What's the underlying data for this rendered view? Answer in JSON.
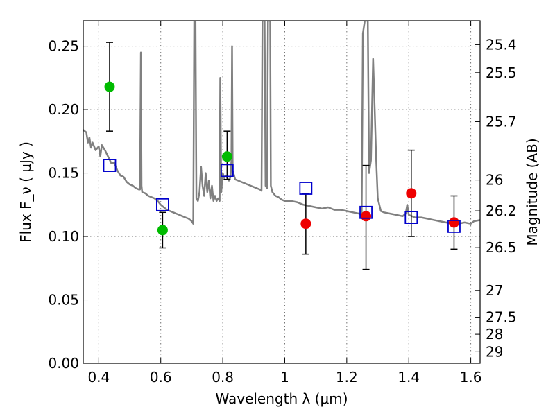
{
  "chart_data": {
    "type": "scatter",
    "xlabel": "Wavelength  λ (μm)",
    "ylabel": "Flux  F_ν  ( μJy )",
    "ylabel_right": "Magnitude (AB)",
    "xlim": [
      0.35,
      1.63
    ],
    "ylim": [
      0.0,
      0.27
    ],
    "grid": true,
    "x_ticks": [
      0.4,
      0.6,
      0.8,
      1.0,
      1.2,
      1.4,
      1.6
    ],
    "x_tick_labels": [
      "0.4",
      "0.6",
      "0.8",
      "1",
      "1.2",
      "1.4",
      "1.6"
    ],
    "y_ticks": [
      0.0,
      0.05,
      0.1,
      0.15,
      0.2,
      0.25
    ],
    "y_tick_labels": [
      "0.00",
      "0.05",
      "0.10",
      "0.15",
      "0.20",
      "0.25"
    ],
    "right_ticks": [
      {
        "mag": "25.4",
        "flux": 0.2512
      },
      {
        "mag": "25.5",
        "flux": 0.2291
      },
      {
        "mag": "25.7",
        "flux": 0.1905
      },
      {
        "mag": "26",
        "flux": 0.1445
      },
      {
        "mag": "26.2",
        "flux": 0.1202
      },
      {
        "mag": "26.5",
        "flux": 0.0912
      },
      {
        "mag": "27",
        "flux": 0.0575
      },
      {
        "mag": "27.5",
        "flux": 0.0363
      },
      {
        "mag": "28",
        "flux": 0.0229
      },
      {
        "mag": "29",
        "flux": 0.0091
      }
    ],
    "series": [
      {
        "color": "#00bb00",
        "marker": "circle",
        "x": [
          0.435,
          0.606,
          0.814
        ],
        "y": [
          0.218,
          0.105,
          0.163
        ],
        "err_low": [
          0.183,
          0.091,
          0.145
        ],
        "err_high": [
          0.253,
          0.119,
          0.183
        ]
      },
      {
        "color": "#ee0000",
        "marker": "circle",
        "x": [
          1.068,
          1.262,
          1.408,
          1.546
        ],
        "y": [
          0.11,
          0.116,
          0.134,
          0.111
        ],
        "err_low": [
          0.086,
          0.074,
          0.1,
          0.09
        ],
        "err_high": [
          0.134,
          0.156,
          0.168,
          0.132
        ]
      },
      {
        "color": "#0000cc",
        "marker": "open-square",
        "x": [
          0.435,
          0.606,
          0.814,
          1.068,
          1.262,
          1.408,
          1.546
        ],
        "y": [
          0.156,
          0.125,
          0.152,
          0.138,
          0.119,
          0.115,
          0.108
        ]
      }
    ],
    "model_spectrum": {
      "color": "#808080",
      "points": [
        [
          0.35,
          0.184
        ],
        [
          0.36,
          0.182
        ],
        [
          0.365,
          0.174
        ],
        [
          0.37,
          0.178
        ],
        [
          0.375,
          0.17
        ],
        [
          0.38,
          0.174
        ],
        [
          0.39,
          0.168
        ],
        [
          0.4,
          0.171
        ],
        [
          0.405,
          0.163
        ],
        [
          0.41,
          0.172
        ],
        [
          0.42,
          0.168
        ],
        [
          0.43,
          0.163
        ],
        [
          0.44,
          0.158
        ],
        [
          0.45,
          0.158
        ],
        [
          0.46,
          0.152
        ],
        [
          0.47,
          0.148
        ],
        [
          0.48,
          0.147
        ],
        [
          0.49,
          0.143
        ],
        [
          0.5,
          0.141
        ],
        [
          0.51,
          0.14
        ],
        [
          0.52,
          0.138
        ],
        [
          0.53,
          0.137
        ],
        [
          0.533,
          0.137
        ],
        [
          0.536,
          0.245
        ],
        [
          0.538,
          0.14
        ],
        [
          0.54,
          0.135
        ],
        [
          0.55,
          0.134
        ],
        [
          0.56,
          0.132
        ],
        [
          0.57,
          0.131
        ],
        [
          0.58,
          0.13
        ],
        [
          0.59,
          0.128
        ],
        [
          0.6,
          0.125
        ],
        [
          0.61,
          0.123
        ],
        [
          0.62,
          0.121
        ],
        [
          0.63,
          0.12
        ],
        [
          0.64,
          0.119
        ],
        [
          0.65,
          0.118
        ],
        [
          0.66,
          0.117
        ],
        [
          0.67,
          0.116
        ],
        [
          0.68,
          0.115
        ],
        [
          0.69,
          0.114
        ],
        [
          0.7,
          0.112
        ],
        [
          0.705,
          0.11
        ],
        [
          0.708,
          0.27
        ],
        [
          0.712,
          0.27
        ],
        [
          0.715,
          0.13
        ],
        [
          0.72,
          0.128
        ],
        [
          0.725,
          0.135
        ],
        [
          0.73,
          0.155
        ],
        [
          0.735,
          0.14
        ],
        [
          0.74,
          0.132
        ],
        [
          0.745,
          0.15
        ],
        [
          0.75,
          0.135
        ],
        [
          0.755,
          0.144
        ],
        [
          0.76,
          0.13
        ],
        [
          0.765,
          0.14
        ],
        [
          0.77,
          0.128
        ],
        [
          0.775,
          0.132
        ],
        [
          0.78,
          0.128
        ],
        [
          0.785,
          0.13
        ],
        [
          0.79,
          0.128
        ],
        [
          0.792,
          0.225
        ],
        [
          0.795,
          0.135
        ],
        [
          0.8,
          0.15
        ],
        [
          0.805,
          0.146
        ],
        [
          0.81,
          0.148
        ],
        [
          0.82,
          0.144
        ],
        [
          0.825,
          0.147
        ],
        [
          0.828,
          0.16
        ],
        [
          0.83,
          0.25
        ],
        [
          0.832,
          0.152
        ],
        [
          0.84,
          0.145
        ],
        [
          0.85,
          0.144
        ],
        [
          0.86,
          0.143
        ],
        [
          0.87,
          0.142
        ],
        [
          0.88,
          0.141
        ],
        [
          0.89,
          0.14
        ],
        [
          0.9,
          0.139
        ],
        [
          0.91,
          0.138
        ],
        [
          0.92,
          0.137
        ],
        [
          0.925,
          0.136
        ],
        [
          0.928,
          0.27
        ],
        [
          0.935,
          0.27
        ],
        [
          0.938,
          0.14
        ],
        [
          0.943,
          0.138
        ],
        [
          0.946,
          0.27
        ],
        [
          0.953,
          0.27
        ],
        [
          0.955,
          0.14
        ],
        [
          0.96,
          0.135
        ],
        [
          0.97,
          0.132
        ],
        [
          0.98,
          0.131
        ],
        [
          0.99,
          0.129
        ],
        [
          1.0,
          0.128
        ],
        [
          1.02,
          0.128
        ],
        [
          1.04,
          0.127
        ],
        [
          1.06,
          0.125
        ],
        [
          1.08,
          0.124
        ],
        [
          1.1,
          0.123
        ],
        [
          1.12,
          0.122
        ],
        [
          1.14,
          0.123
        ],
        [
          1.16,
          0.121
        ],
        [
          1.18,
          0.121
        ],
        [
          1.2,
          0.12
        ],
        [
          1.22,
          0.119
        ],
        [
          1.24,
          0.118
        ],
        [
          1.245,
          0.117
        ],
        [
          1.248,
          0.115
        ],
        [
          1.252,
          0.26
        ],
        [
          1.258,
          0.27
        ],
        [
          1.268,
          0.27
        ],
        [
          1.272,
          0.15
        ],
        [
          1.278,
          0.16
        ],
        [
          1.285,
          0.24
        ],
        [
          1.29,
          0.2
        ],
        [
          1.295,
          0.16
        ],
        [
          1.3,
          0.13
        ],
        [
          1.31,
          0.12
        ],
        [
          1.32,
          0.119
        ],
        [
          1.34,
          0.118
        ],
        [
          1.36,
          0.117
        ],
        [
          1.38,
          0.116
        ],
        [
          1.39,
          0.118
        ],
        [
          1.395,
          0.125
        ],
        [
          1.4,
          0.117
        ],
        [
          1.42,
          0.115
        ],
        [
          1.44,
          0.115
        ],
        [
          1.46,
          0.114
        ],
        [
          1.48,
          0.113
        ],
        [
          1.5,
          0.112
        ],
        [
          1.52,
          0.111
        ],
        [
          1.54,
          0.11
        ],
        [
          1.56,
          0.11
        ],
        [
          1.58,
          0.111
        ],
        [
          1.6,
          0.11
        ],
        [
          1.61,
          0.112
        ],
        [
          1.63,
          0.113
        ]
      ]
    }
  }
}
